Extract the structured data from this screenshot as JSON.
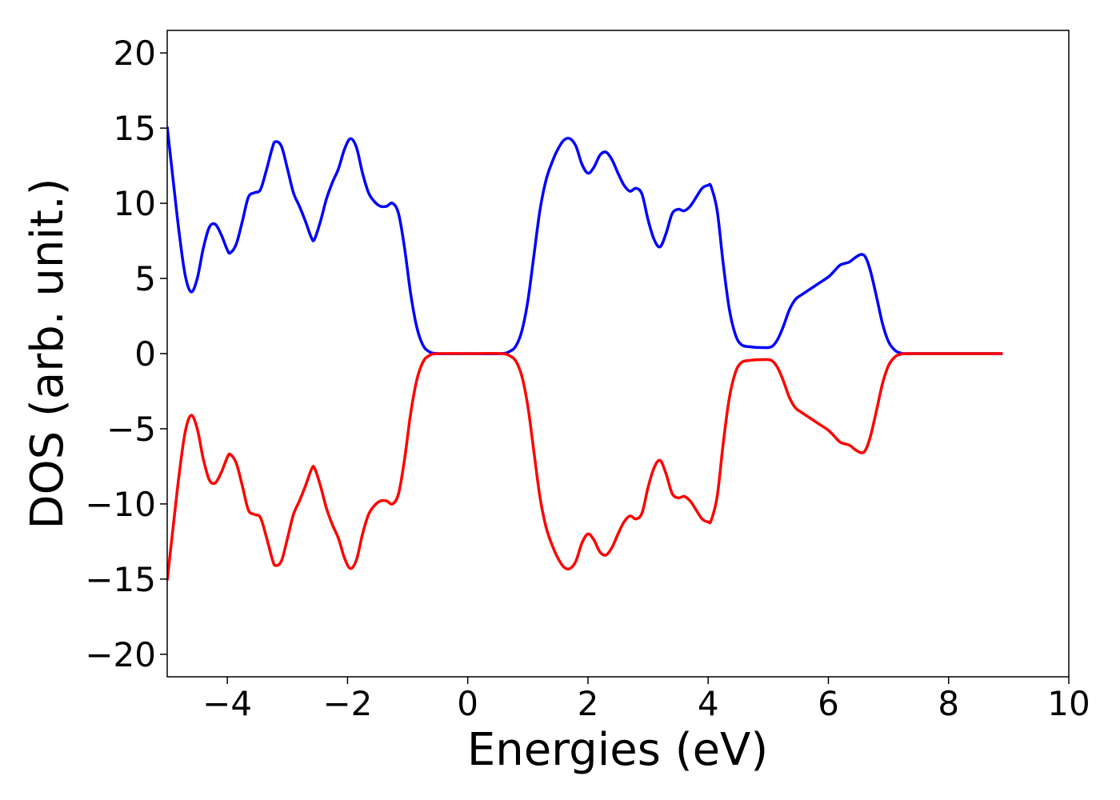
{
  "chart_data": {
    "type": "line",
    "title": "",
    "xlabel": "Energies (eV)",
    "ylabel": "DOS (arb. unit.)",
    "xlim": [
      -5,
      10
    ],
    "ylim": [
      -21.5,
      21.5
    ],
    "xticks": [
      -4,
      -2,
      0,
      2,
      4,
      6,
      8,
      10
    ],
    "xtick_labels": [
      "−4",
      "−2",
      "0",
      "2",
      "4",
      "6",
      "8",
      "10"
    ],
    "yticks": [
      20,
      15,
      10,
      5,
      0,
      -5,
      -10,
      -15,
      -20
    ],
    "ytick_labels": [
      "20",
      "15",
      "10",
      "5",
      "0",
      "−5",
      "−10",
      "−15",
      "−20"
    ],
    "grid": false,
    "legend": "none",
    "series": [
      {
        "color": "#0000ff",
        "points": [
          [
            -5.0,
            15.1
          ],
          [
            -4.9,
            11.5
          ],
          [
            -4.8,
            8.0
          ],
          [
            -4.7,
            5.2
          ],
          [
            -4.6,
            4.1
          ],
          [
            -4.5,
            5.0
          ],
          [
            -4.4,
            7.0
          ],
          [
            -4.3,
            8.4
          ],
          [
            -4.2,
            8.6
          ],
          [
            -4.1,
            7.9
          ],
          [
            -4.0,
            6.9
          ],
          [
            -3.95,
            6.7
          ],
          [
            -3.85,
            7.3
          ],
          [
            -3.75,
            8.8
          ],
          [
            -3.65,
            10.4
          ],
          [
            -3.55,
            10.7
          ],
          [
            -3.45,
            10.9
          ],
          [
            -3.35,
            12.2
          ],
          [
            -3.25,
            13.7
          ],
          [
            -3.2,
            14.1
          ],
          [
            -3.1,
            13.8
          ],
          [
            -3.0,
            12.3
          ],
          [
            -2.9,
            10.7
          ],
          [
            -2.8,
            9.8
          ],
          [
            -2.7,
            8.8
          ],
          [
            -2.6,
            7.7
          ],
          [
            -2.55,
            7.6
          ],
          [
            -2.45,
            8.8
          ],
          [
            -2.35,
            10.3
          ],
          [
            -2.25,
            11.4
          ],
          [
            -2.15,
            12.3
          ],
          [
            -2.05,
            13.6
          ],
          [
            -1.95,
            14.3
          ],
          [
            -1.85,
            13.7
          ],
          [
            -1.75,
            12.0
          ],
          [
            -1.65,
            10.7
          ],
          [
            -1.55,
            10.1
          ],
          [
            -1.45,
            9.8
          ],
          [
            -1.35,
            9.8
          ],
          [
            -1.25,
            10.0
          ],
          [
            -1.15,
            9.3
          ],
          [
            -1.05,
            7.0
          ],
          [
            -0.95,
            4.0
          ],
          [
            -0.85,
            1.8
          ],
          [
            -0.75,
            0.6
          ],
          [
            -0.65,
            0.15
          ],
          [
            -0.5,
            0.0
          ],
          [
            0.0,
            0.0
          ],
          [
            0.55,
            0.0
          ],
          [
            0.7,
            0.15
          ],
          [
            0.8,
            0.5
          ],
          [
            0.9,
            1.5
          ],
          [
            1.0,
            3.5
          ],
          [
            1.1,
            6.5
          ],
          [
            1.2,
            9.5
          ],
          [
            1.3,
            11.5
          ],
          [
            1.4,
            12.7
          ],
          [
            1.5,
            13.6
          ],
          [
            1.6,
            14.2
          ],
          [
            1.7,
            14.3
          ],
          [
            1.8,
            13.8
          ],
          [
            1.9,
            12.6
          ],
          [
            2.0,
            12.0
          ],
          [
            2.1,
            12.4
          ],
          [
            2.2,
            13.2
          ],
          [
            2.3,
            13.4
          ],
          [
            2.4,
            12.9
          ],
          [
            2.5,
            12.0
          ],
          [
            2.6,
            11.2
          ],
          [
            2.7,
            10.8
          ],
          [
            2.8,
            11.0
          ],
          [
            2.9,
            10.6
          ],
          [
            3.0,
            8.9
          ],
          [
            3.1,
            7.6
          ],
          [
            3.2,
            7.1
          ],
          [
            3.3,
            8.0
          ],
          [
            3.4,
            9.3
          ],
          [
            3.5,
            9.6
          ],
          [
            3.6,
            9.5
          ],
          [
            3.7,
            9.8
          ],
          [
            3.8,
            10.4
          ],
          [
            3.9,
            11.0
          ],
          [
            4.0,
            11.2
          ],
          [
            4.05,
            11.1
          ],
          [
            4.15,
            9.5
          ],
          [
            4.25,
            6.0
          ],
          [
            4.35,
            3.0
          ],
          [
            4.45,
            1.3
          ],
          [
            4.55,
            0.6
          ],
          [
            4.7,
            0.45
          ],
          [
            4.9,
            0.4
          ],
          [
            5.05,
            0.45
          ],
          [
            5.15,
            0.9
          ],
          [
            5.25,
            1.8
          ],
          [
            5.35,
            2.9
          ],
          [
            5.45,
            3.6
          ],
          [
            5.55,
            3.9
          ],
          [
            5.7,
            4.3
          ],
          [
            5.85,
            4.7
          ],
          [
            6.0,
            5.1
          ],
          [
            6.1,
            5.5
          ],
          [
            6.2,
            5.9
          ],
          [
            6.35,
            6.1
          ],
          [
            6.45,
            6.4
          ],
          [
            6.55,
            6.6
          ],
          [
            6.62,
            6.4
          ],
          [
            6.7,
            5.5
          ],
          [
            6.8,
            3.8
          ],
          [
            6.9,
            2.0
          ],
          [
            7.0,
            0.8
          ],
          [
            7.1,
            0.25
          ],
          [
            7.2,
            0.05
          ],
          [
            7.4,
            0.0
          ],
          [
            8.9,
            0.0
          ]
        ]
      },
      {
        "color": "#ff0000",
        "points": [
          [
            -5.0,
            -15.1
          ],
          [
            -4.9,
            -11.5
          ],
          [
            -4.8,
            -8.0
          ],
          [
            -4.7,
            -5.2
          ],
          [
            -4.6,
            -4.1
          ],
          [
            -4.5,
            -5.0
          ],
          [
            -4.4,
            -7.0
          ],
          [
            -4.3,
            -8.4
          ],
          [
            -4.2,
            -8.6
          ],
          [
            -4.1,
            -7.9
          ],
          [
            -4.0,
            -6.9
          ],
          [
            -3.95,
            -6.7
          ],
          [
            -3.85,
            -7.3
          ],
          [
            -3.75,
            -8.8
          ],
          [
            -3.65,
            -10.4
          ],
          [
            -3.55,
            -10.7
          ],
          [
            -3.45,
            -10.9
          ],
          [
            -3.35,
            -12.2
          ],
          [
            -3.25,
            -13.7
          ],
          [
            -3.2,
            -14.1
          ],
          [
            -3.1,
            -13.8
          ],
          [
            -3.0,
            -12.3
          ],
          [
            -2.9,
            -10.7
          ],
          [
            -2.8,
            -9.8
          ],
          [
            -2.7,
            -8.8
          ],
          [
            -2.6,
            -7.7
          ],
          [
            -2.55,
            -7.6
          ],
          [
            -2.45,
            -8.8
          ],
          [
            -2.35,
            -10.3
          ],
          [
            -2.25,
            -11.4
          ],
          [
            -2.15,
            -12.3
          ],
          [
            -2.05,
            -13.6
          ],
          [
            -1.95,
            -14.3
          ],
          [
            -1.85,
            -13.7
          ],
          [
            -1.75,
            -12.0
          ],
          [
            -1.65,
            -10.7
          ],
          [
            -1.55,
            -10.1
          ],
          [
            -1.45,
            -9.8
          ],
          [
            -1.35,
            -9.8
          ],
          [
            -1.25,
            -10.0
          ],
          [
            -1.15,
            -9.3
          ],
          [
            -1.05,
            -7.0
          ],
          [
            -0.95,
            -4.0
          ],
          [
            -0.85,
            -1.8
          ],
          [
            -0.75,
            -0.6
          ],
          [
            -0.65,
            -0.15
          ],
          [
            -0.5,
            0.0
          ],
          [
            0.0,
            0.0
          ],
          [
            0.55,
            0.0
          ],
          [
            0.7,
            -0.15
          ],
          [
            0.8,
            -0.5
          ],
          [
            0.9,
            -1.5
          ],
          [
            1.0,
            -3.5
          ],
          [
            1.1,
            -6.5
          ],
          [
            1.2,
            -9.5
          ],
          [
            1.3,
            -11.5
          ],
          [
            1.4,
            -12.7
          ],
          [
            1.5,
            -13.6
          ],
          [
            1.6,
            -14.2
          ],
          [
            1.7,
            -14.3
          ],
          [
            1.8,
            -13.8
          ],
          [
            1.9,
            -12.6
          ],
          [
            2.0,
            -12.0
          ],
          [
            2.1,
            -12.4
          ],
          [
            2.2,
            -13.2
          ],
          [
            2.3,
            -13.4
          ],
          [
            2.4,
            -12.9
          ],
          [
            2.5,
            -12.0
          ],
          [
            2.6,
            -11.2
          ],
          [
            2.7,
            -10.8
          ],
          [
            2.8,
            -11.0
          ],
          [
            2.9,
            -10.6
          ],
          [
            3.0,
            -8.9
          ],
          [
            3.1,
            -7.6
          ],
          [
            3.2,
            -7.1
          ],
          [
            3.3,
            -8.0
          ],
          [
            3.4,
            -9.3
          ],
          [
            3.5,
            -9.6
          ],
          [
            3.6,
            -9.5
          ],
          [
            3.7,
            -9.8
          ],
          [
            3.8,
            -10.4
          ],
          [
            3.9,
            -11.0
          ],
          [
            4.0,
            -11.2
          ],
          [
            4.05,
            -11.1
          ],
          [
            4.15,
            -9.5
          ],
          [
            4.25,
            -6.0
          ],
          [
            4.35,
            -3.0
          ],
          [
            4.45,
            -1.3
          ],
          [
            4.55,
            -0.6
          ],
          [
            4.7,
            -0.45
          ],
          [
            4.9,
            -0.4
          ],
          [
            5.05,
            -0.45
          ],
          [
            5.15,
            -0.9
          ],
          [
            5.25,
            -1.8
          ],
          [
            5.35,
            -2.9
          ],
          [
            5.45,
            -3.6
          ],
          [
            5.55,
            -3.9
          ],
          [
            5.7,
            -4.3
          ],
          [
            5.85,
            -4.7
          ],
          [
            6.0,
            -5.1
          ],
          [
            6.1,
            -5.5
          ],
          [
            6.2,
            -5.9
          ],
          [
            6.35,
            -6.1
          ],
          [
            6.45,
            -6.4
          ],
          [
            6.55,
            -6.6
          ],
          [
            6.62,
            -6.4
          ],
          [
            6.7,
            -5.5
          ],
          [
            6.8,
            -3.8
          ],
          [
            6.9,
            -2.0
          ],
          [
            7.0,
            -0.8
          ],
          [
            7.1,
            -0.25
          ],
          [
            7.2,
            -0.05
          ],
          [
            7.4,
            0.0
          ],
          [
            8.9,
            0.0
          ]
        ]
      }
    ]
  }
}
